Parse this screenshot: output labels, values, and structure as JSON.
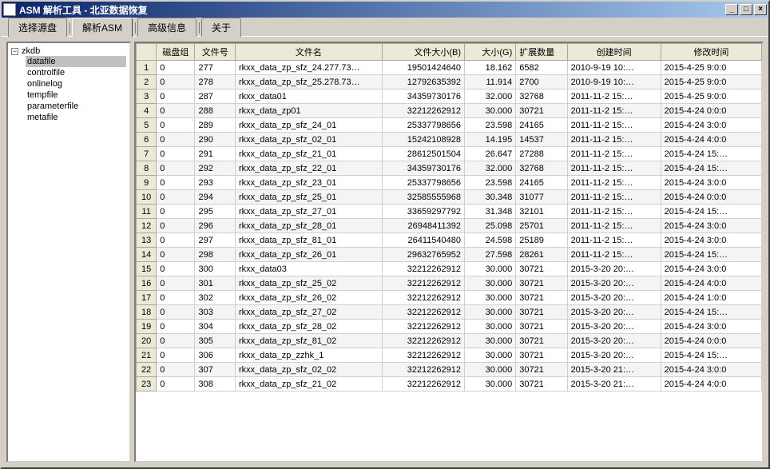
{
  "window": {
    "title": "ASM 解析工具 - 北亚数据恢复",
    "min_glyph": "_",
    "max_glyph": "□",
    "close_glyph": "×"
  },
  "tabs": [
    {
      "label": "选择源盘",
      "active": false
    },
    {
      "label": "解析ASM",
      "active": true
    },
    {
      "label": "高级信息",
      "active": false
    },
    {
      "label": "关于",
      "active": false
    }
  ],
  "tree": {
    "root_label": "zkdb",
    "toggle_glyph": "−",
    "items": [
      {
        "label": "datafile",
        "selected": true
      },
      {
        "label": "controlfile",
        "selected": false
      },
      {
        "label": "onlinelog",
        "selected": false
      },
      {
        "label": "tempfile",
        "selected": false
      },
      {
        "label": "parameterfile",
        "selected": false
      },
      {
        "label": "metafile",
        "selected": false
      }
    ]
  },
  "grid": {
    "columns": [
      "磁盘组",
      "文件号",
      "文件名",
      "文件大小(B)",
      "大小(G)",
      "扩展数量",
      "创建时间",
      "修改时间"
    ],
    "rows": [
      [
        "0",
        "277",
        "rkxx_data_zp_sfz_24.277.73…",
        "19501424640",
        "18.162",
        "6582",
        "2010-9-19 10:…",
        "2015-4-25 9:0:0"
      ],
      [
        "0",
        "278",
        "rkxx_data_zp_sfz_25.278.73…",
        "12792635392",
        "11.914",
        "2700",
        "2010-9-19 10:…",
        "2015-4-25 9:0:0"
      ],
      [
        "0",
        "287",
        "rkxx_data01",
        "34359730176",
        "32.000",
        "32768",
        "2011-11-2 15:…",
        "2015-4-25 9:0:0"
      ],
      [
        "0",
        "288",
        "rkxx_data_zp01",
        "32212262912",
        "30.000",
        "30721",
        "2011-11-2 15:…",
        "2015-4-24 0:0:0"
      ],
      [
        "0",
        "289",
        "rkxx_data_zp_sfz_24_01",
        "25337798656",
        "23.598",
        "24165",
        "2011-11-2 15:…",
        "2015-4-24 3:0:0"
      ],
      [
        "0",
        "290",
        "rkxx_data_zp_sfz_02_01",
        "15242108928",
        "14.195",
        "14537",
        "2011-11-2 15:…",
        "2015-4-24 4:0:0"
      ],
      [
        "0",
        "291",
        "rkxx_data_zp_sfz_21_01",
        "28612501504",
        "26.647",
        "27288",
        "2011-11-2 15:…",
        "2015-4-24 15:…"
      ],
      [
        "0",
        "292",
        "rkxx_data_zp_sfz_22_01",
        "34359730176",
        "32.000",
        "32768",
        "2011-11-2 15:…",
        "2015-4-24 15:…"
      ],
      [
        "0",
        "293",
        "rkxx_data_zp_sfz_23_01",
        "25337798656",
        "23.598",
        "24165",
        "2011-11-2 15:…",
        "2015-4-24 3:0:0"
      ],
      [
        "0",
        "294",
        "rkxx_data_zp_sfz_25_01",
        "32585555968",
        "30.348",
        "31077",
        "2011-11-2 15:…",
        "2015-4-24 0:0:0"
      ],
      [
        "0",
        "295",
        "rkxx_data_zp_sfz_27_01",
        "33659297792",
        "31.348",
        "32101",
        "2011-11-2 15:…",
        "2015-4-24 15:…"
      ],
      [
        "0",
        "296",
        "rkxx_data_zp_sfz_28_01",
        "26948411392",
        "25.098",
        "25701",
        "2011-11-2 15:…",
        "2015-4-24 3:0:0"
      ],
      [
        "0",
        "297",
        "rkxx_data_zp_sfz_81_01",
        "26411540480",
        "24.598",
        "25189",
        "2011-11-2 15:…",
        "2015-4-24 3:0:0"
      ],
      [
        "0",
        "298",
        "rkxx_data_zp_sfz_26_01",
        "29632765952",
        "27.598",
        "28261",
        "2011-11-2 15:…",
        "2015-4-24 15:…"
      ],
      [
        "0",
        "300",
        "rkxx_data03",
        "32212262912",
        "30.000",
        "30721",
        "2015-3-20 20:…",
        "2015-4-24 3:0:0"
      ],
      [
        "0",
        "301",
        "rkxx_data_zp_sfz_25_02",
        "32212262912",
        "30.000",
        "30721",
        "2015-3-20 20:…",
        "2015-4-24 4:0:0"
      ],
      [
        "0",
        "302",
        "rkxx_data_zp_sfz_26_02",
        "32212262912",
        "30.000",
        "30721",
        "2015-3-20 20:…",
        "2015-4-24 1:0:0"
      ],
      [
        "0",
        "303",
        "rkxx_data_zp_sfz_27_02",
        "32212262912",
        "30.000",
        "30721",
        "2015-3-20 20:…",
        "2015-4-24 15:…"
      ],
      [
        "0",
        "304",
        "rkxx_data_zp_sfz_28_02",
        "32212262912",
        "30.000",
        "30721",
        "2015-3-20 20:…",
        "2015-4-24 3:0:0"
      ],
      [
        "0",
        "305",
        "rkxx_data_zp_sfz_81_02",
        "32212262912",
        "30.000",
        "30721",
        "2015-3-20 20:…",
        "2015-4-24 0:0:0"
      ],
      [
        "0",
        "306",
        "rkxx_data_zp_zzhk_1",
        "32212262912",
        "30.000",
        "30721",
        "2015-3-20 20:…",
        "2015-4-24 15:…"
      ],
      [
        "0",
        "307",
        "rkxx_data_zp_sfz_02_02",
        "32212262912",
        "30.000",
        "30721",
        "2015-3-20 21:…",
        "2015-4-24 3:0:0"
      ],
      [
        "0",
        "308",
        "rkxx_data_zp_sfz_21_02",
        "32212262912",
        "30.000",
        "30721",
        "2015-3-20 21:…",
        "2015-4-24 4:0:0"
      ]
    ]
  }
}
